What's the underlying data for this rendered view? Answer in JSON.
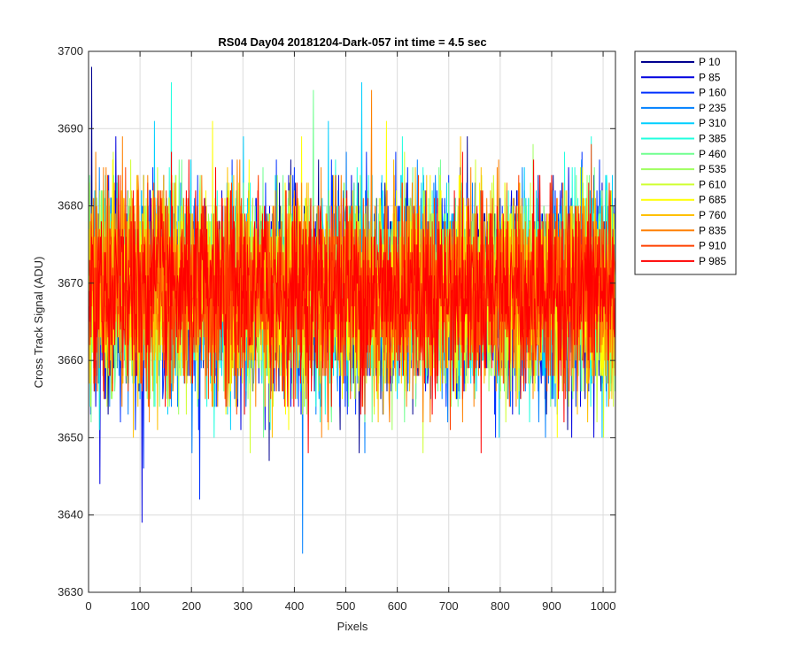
{
  "chart_data": {
    "type": "line",
    "title": "RS04 Day04 20181204-Dark-057 int time = 4.5 sec",
    "xlabel": "Pixels",
    "ylabel": "Cross Track Signal (ADU)",
    "xlim": [
      0,
      1024
    ],
    "ylim": [
      3630,
      3700
    ],
    "xticks": [
      0,
      100,
      200,
      300,
      400,
      500,
      600,
      700,
      800,
      900,
      1000
    ],
    "yticks": [
      3630,
      3640,
      3650,
      3660,
      3670,
      3680,
      3690,
      3700
    ],
    "grid": true,
    "legend_position": "outside-top-right",
    "series_mean": 3669,
    "series_std": 6.2,
    "series": [
      {
        "name": "P 10",
        "color": "#00008f"
      },
      {
        "name": "P 85",
        "color": "#0000df"
      },
      {
        "name": "P 160",
        "color": "#0030ff"
      },
      {
        "name": "P 235",
        "color": "#0080ff"
      },
      {
        "name": "P 310",
        "color": "#00cfff"
      },
      {
        "name": "P 385",
        "color": "#20ffdf"
      },
      {
        "name": "P 460",
        "color": "#70ff8f"
      },
      {
        "name": "P 535",
        "color": "#9fff60"
      },
      {
        "name": "P 610",
        "color": "#cfff30"
      },
      {
        "name": "P 685",
        "color": "#ffff00"
      },
      {
        "name": "P 760",
        "color": "#ffc000"
      },
      {
        "name": "P 835",
        "color": "#ff8000"
      },
      {
        "name": "P 910",
        "color": "#ff4000"
      },
      {
        "name": "P 985",
        "color": "#ff0000"
      }
    ],
    "notable_points": [
      {
        "x": 5,
        "y": 3698
      },
      {
        "x": 103,
        "y": 3639
      },
      {
        "x": 215,
        "y": 3642
      },
      {
        "x": 415,
        "y": 3635
      },
      {
        "x": 530,
        "y": 3696
      },
      {
        "x": 160,
        "y": 3696
      }
    ]
  }
}
